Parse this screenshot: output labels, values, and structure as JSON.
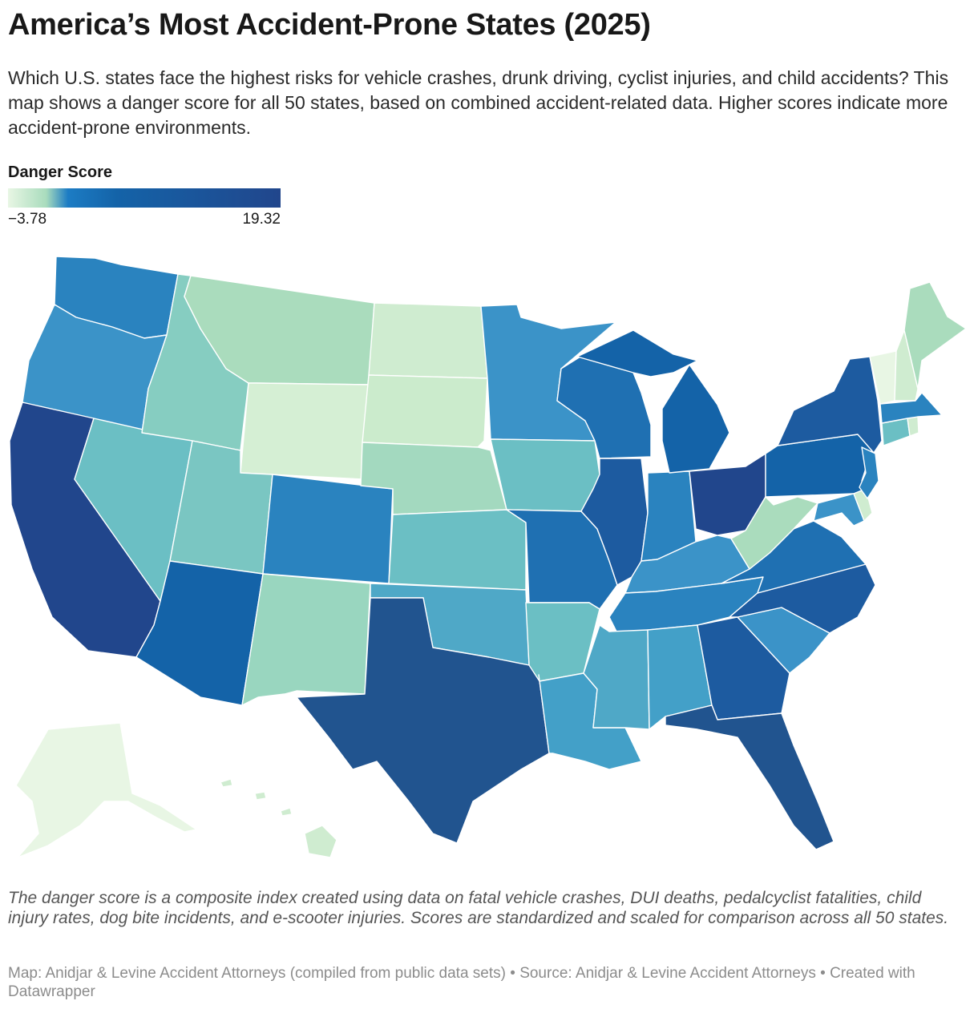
{
  "title": "America’s Most Accident-Prone States (2025)",
  "description": "Which U.S. states face the highest risks for vehicle crashes, drunk driving, cyclist injuries, and child accidents? This map shows a danger score for all 50 states, based on combined accident-related data. Higher scores indicate more accident-prone environments.",
  "legend": {
    "title": "Danger Score",
    "min_label": "−3.78",
    "max_label": "19.32",
    "min": -3.78,
    "max": 19.32
  },
  "colors": {
    "darkest": "#21468c",
    "dark": "#1463a8",
    "mid_dark": "#2a83bf",
    "mid": "#3b93c8",
    "mid_light": "#6bbfc4",
    "teal_light": "#99d6bf",
    "light": "#cfecd0",
    "lightest": "#e8f6e4",
    "border": "#ffffff"
  },
  "map": {
    "states": [
      {
        "code": "WA",
        "color": "#2a83bf"
      },
      {
        "code": "OR",
        "color": "#3b93c8"
      },
      {
        "code": "CA",
        "color": "#21468c"
      },
      {
        "code": "NV",
        "color": "#6bbfc4"
      },
      {
        "code": "ID",
        "color": "#86cdc1"
      },
      {
        "code": "MT",
        "color": "#aadcbd"
      },
      {
        "code": "WY",
        "color": "#d5efd4"
      },
      {
        "code": "UT",
        "color": "#7ac6c2"
      },
      {
        "code": "AZ",
        "color": "#1463a8"
      },
      {
        "code": "CO",
        "color": "#2a83bf"
      },
      {
        "code": "NM",
        "color": "#99d6bf"
      },
      {
        "code": "ND",
        "color": "#cfecd0"
      },
      {
        "code": "SD",
        "color": "#cbebcc"
      },
      {
        "code": "NE",
        "color": "#a3d9bf"
      },
      {
        "code": "KS",
        "color": "#6bbfc4"
      },
      {
        "code": "OK",
        "color": "#4fa8c7"
      },
      {
        "code": "TX",
        "color": "#21548f"
      },
      {
        "code": "MN",
        "color": "#3b93c8"
      },
      {
        "code": "IA",
        "color": "#6bbfc4"
      },
      {
        "code": "MO",
        "color": "#1f70b2"
      },
      {
        "code": "AR",
        "color": "#6bbfc4"
      },
      {
        "code": "LA",
        "color": "#43a0c8"
      },
      {
        "code": "WI",
        "color": "#1f70b2"
      },
      {
        "code": "IL",
        "color": "#1d5ba0"
      },
      {
        "code": "MI",
        "color": "#1463a8"
      },
      {
        "code": "IN",
        "color": "#2a83bf"
      },
      {
        "code": "OH",
        "color": "#21468c"
      },
      {
        "code": "KY",
        "color": "#3b93c8"
      },
      {
        "code": "TN",
        "color": "#2a83bf"
      },
      {
        "code": "MS",
        "color": "#4fa8c7"
      },
      {
        "code": "AL",
        "color": "#43a0c8"
      },
      {
        "code": "GA",
        "color": "#1d5ba0"
      },
      {
        "code": "FL",
        "color": "#21548f"
      },
      {
        "code": "SC",
        "color": "#3b93c8"
      },
      {
        "code": "NC",
        "color": "#1d5ba0"
      },
      {
        "code": "VA",
        "color": "#1f70b2"
      },
      {
        "code": "WV",
        "color": "#aadcbd"
      },
      {
        "code": "PA",
        "color": "#1463a8"
      },
      {
        "code": "NY",
        "color": "#1d5ba0"
      },
      {
        "code": "MD",
        "color": "#3b93c8"
      },
      {
        "code": "DE",
        "color": "#cfecd0"
      },
      {
        "code": "NJ",
        "color": "#2a83bf"
      },
      {
        "code": "CT",
        "color": "#6bbfc4"
      },
      {
        "code": "RI",
        "color": "#cfecd0"
      },
      {
        "code": "MA",
        "color": "#2a83bf"
      },
      {
        "code": "VT",
        "color": "#e8f6e4"
      },
      {
        "code": "NH",
        "color": "#cfecd0"
      },
      {
        "code": "ME",
        "color": "#aadcbd"
      },
      {
        "code": "AK",
        "color": "#e8f6e4"
      },
      {
        "code": "HI",
        "color": "#cfecd0"
      }
    ]
  },
  "note": "The danger score is a composite index created using data on fatal vehicle crashes, DUI deaths, pedalcyclist fatalities, child injury rates, dog bite incidents, and e-scooter injuries. Scores are standardized and scaled for comparison across all 50 states.",
  "footer": "Map: Anidjar & Levine Accident Attorneys (compiled from public data sets) • Source: Anidjar & Levine Accident Attorneys • Created with Datawrapper"
}
